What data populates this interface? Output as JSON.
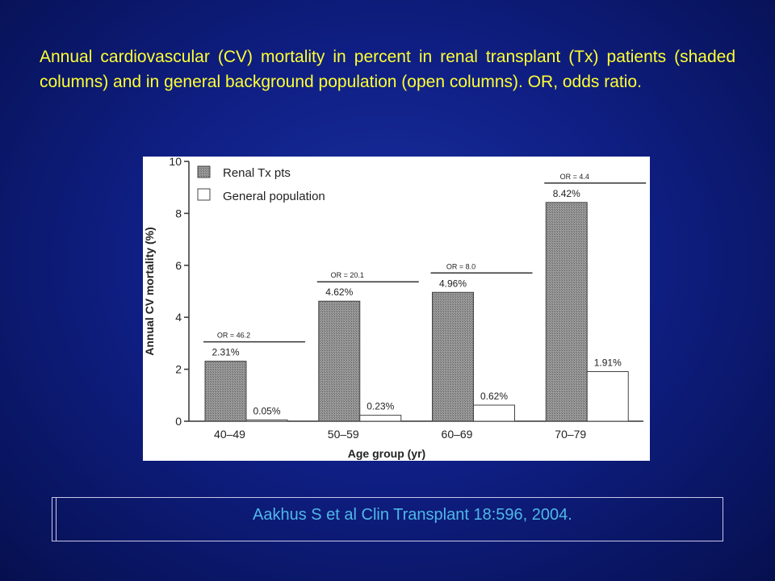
{
  "caption": "Annual cardiovascular (CV) mortality in percent in renal transplant (Tx) patients (shaded columns) and in general background population (open columns). OR, odds ratio.",
  "citation": "Aakhus S et al Clin Transplant 18:596, 2004.",
  "colors": {
    "background": "#0f1f85",
    "caption": "#ffff33",
    "citation": "#4fb8e8",
    "shaded_bar": "#8a8a8a",
    "open_bar": "#ffffff"
  },
  "chart_data": {
    "type": "bar",
    "categories": [
      "40–49",
      "50–59",
      "60–69",
      "70–79"
    ],
    "series": [
      {
        "name": "Renal Tx pts",
        "values": [
          2.31,
          4.62,
          4.96,
          8.42
        ],
        "labels": [
          "2.31%",
          "4.62%",
          "4.96%",
          "8.42%"
        ],
        "style": "shaded"
      },
      {
        "name": "General population",
        "values": [
          0.05,
          0.23,
          0.62,
          1.91
        ],
        "labels": [
          "0.05%",
          "0.23%",
          "0.62%",
          "1.91%"
        ],
        "style": "open"
      }
    ],
    "odds_ratios": [
      "OR = 46.2",
      "OR = 20.1",
      "OR = 8.0",
      "OR = 4.4"
    ],
    "xlabel": "Age group (yr)",
    "ylabel": "Annual CV mortality (%)",
    "ylim": [
      0,
      10
    ],
    "yticks": [
      0,
      2,
      4,
      6,
      8,
      10
    ],
    "legend_position": "top-left",
    "grid": false
  }
}
